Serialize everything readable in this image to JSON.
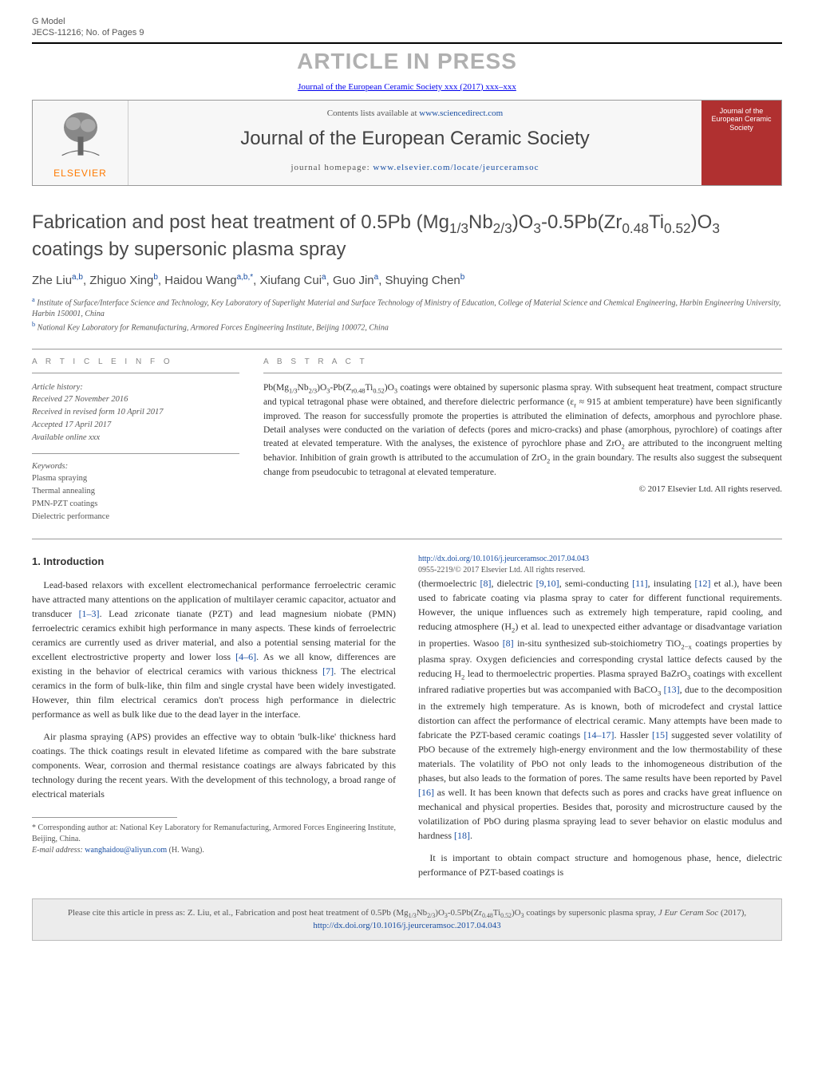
{
  "top_meta": {
    "model_label": "G Model",
    "model_code": "JECS-11216;   No. of Pages 9",
    "press_banner": "ARTICLE IN PRESS",
    "journal_ref": "Journal of the European Ceramic Society xxx (2017) xxx–xxx"
  },
  "header": {
    "elsevier": "ELSEVIER",
    "contents_prefix": "Contents lists available at ",
    "contents_link": "www.sciencedirect.com",
    "journal_name": "Journal of the European Ceramic Society",
    "homepage_prefix": "journal homepage: ",
    "homepage_link": "www.elsevier.com/locate/jeurceramsoc",
    "cover_title": "Journal of the European Ceramic Society"
  },
  "article": {
    "title_html": "Fabrication and post heat treatment of 0.5Pb (Mg<sub>1/3</sub>Nb<sub>2/3</sub>)O<sub>3</sub>-0.5Pb(Zr<sub>0.48</sub>Ti<sub>0.52</sub>)O<sub>3</sub> coatings by supersonic plasma spray",
    "authors_html": "Zhe Liu<sup>a,b</sup>, Zhiguo Xing<sup>b</sup>, Haidou Wang<sup>a,b,*</sup>, Xiufang Cui<sup>a</sup>, Guo Jin<sup>a</sup>, Shuying Chen<sup>b</sup>",
    "affiliations": [
      {
        "sup": "a",
        "text": "Institute of Surface/Interface Science and Technology, Key Laboratory of Superlight Material and Surface Technology of Ministry of Education, College of Material Science and Chemical Engineering, Harbin Engineering University, Harbin 150001, China"
      },
      {
        "sup": "b",
        "text": "National Key Laboratory for Remanufacturing, Armored Forces Engineering Institute, Beijing 100072, China"
      }
    ]
  },
  "info": {
    "section_label": "A R T I C L E   I N F O",
    "history_label": "Article history:",
    "history": [
      "Received 27 November 2016",
      "Received in revised form 10 April 2017",
      "Accepted 17 April 2017",
      "Available online xxx"
    ],
    "keywords_label": "Keywords:",
    "keywords": [
      "Plasma spraying",
      "Thermal annealing",
      "PMN-PZT coatings",
      "Dielectric performance"
    ]
  },
  "abstract": {
    "section_label": "A B S T R A C T",
    "text_html": "Pb(Mg<sub>1/3</sub>Nb<sub>2/3</sub>)O<sub>3</sub>-Pb(Z<sub>r0.48</sub>Ti<sub>0.52</sub>)O<sub>3</sub> coatings were obtained by supersonic plasma spray. With subsequent heat treatment, compact structure and typical tetragonal phase were obtained, and therefore dielectric performance (ε<sub>r</sub> ≈ 915 at ambient temperature) have been significantly improved. The reason for successfully promote the properties is attributed the elimination of defects, amorphous and pyrochlore phase. Detail analyses were conducted on the variation of defects (pores and micro-cracks) and phase (amorphous, pyrochlore) of coatings after treated at elevated temperature. With the analyses, the existence of pyrochlore phase and ZrO<sub>2</sub> are attributed to the incongruent melting behavior. Inhibition of grain growth is attributed to the accumulation of ZrO<sub>2</sub> in the grain boundary. The results also suggest the subsequent change from pseudocubic to tetragonal at elevated temperature.",
    "copyright": "© 2017 Elsevier Ltd. All rights reserved."
  },
  "body": {
    "heading": "1. Introduction",
    "p1_html": "Lead-based relaxors with excellent electromechanical performance ferroelectric ceramic have attracted many attentions on the application of multilayer ceramic capacitor, actuator and transducer <a href='#'>[1–3]</a>. Lead zriconate tianate (PZT) and lead magnesium niobate (PMN) ferroelectric ceramics exhibit high performance in many aspects. These kinds of ferroelectric ceramics are currently used as driver material, and also a potential sensing material for the excellent electrostrictive property and lower loss <a href='#'>[4–6]</a>. As we all know, differences are existing in the behavior of electrical ceramics with various thickness <a href='#'>[7]</a>. The electrical ceramics in the form of bulk-like, thin film and single crystal have been widely investigated. However, thin film electrical ceramics don't process high performance in dielectric performance as well as bulk like due to the dead layer in the interface.",
    "p2_html": "Air plasma spraying (APS) provides an effective way to obtain 'bulk-like' thickness hard coatings. The thick coatings result in elevated lifetime as compared with the bare substrate components. Wear, corrosion and thermal resistance coatings are always fabricated by this technology during the recent years. With the development of this technology, a broad range of electrical materials",
    "p3_html": "(thermoelectric <a href='#'>[8]</a>, dielectric <a href='#'>[9,10]</a>, semi-conducting <a href='#'>[11]</a>, insulating <a href='#'>[12]</a> et al.), have been used to fabricate coating via plasma spray to cater for different functional requirements. However, the unique influences such as extremely high temperature, rapid cooling, and reducing atmosphere (H<sub>2</sub>) et al. lead to unexpected either advantage or disadvantage variation in properties. Wasoo <a href='#'>[8]</a> in-situ synthesized sub-stoichiometry TiO<sub>2−x</sub> coatings properties by plasma spray. Oxygen deficiencies and corresponding crystal lattice defects caused by the reducing H<sub>2</sub> lead to thermoelectric properties. Plasma sprayed BaZrO<sub>3</sub> coatings with excellent infrared radiative properties but was accompanied with BaCO<sub>3</sub> <a href='#'>[13]</a>, due to the decomposition in the extremely high temperature. As is known, both of microdefect and crystal lattice distortion can affect the performance of electrical ceramic. Many attempts have been made to fabricate the PZT-based ceramic coatings <a href='#'>[14–17]</a>. Hassler <a href='#'>[15]</a> suggested sever volatility of PbO because of the extremely high-energy environment and the low thermostability of these materials. The volatility of PbO not only leads to the inhomogeneous distribution of the phases, but also leads to the formation of pores. The same results have been reported by Pavel <a href='#'>[16]</a> as well. It has been known that defects such as pores and cracks have great influence on mechanical and physical properties. Besides that, porosity and microstructure caused by the volatilization of PbO during plasma spraying lead to sever behavior on elastic modulus and hardness <a href='#'>[18]</a>.",
    "p4_html": "It is important to obtain compact structure and homogenous phase, hence, dielectric performance of PZT-based coatings is"
  },
  "footnotes": {
    "corresponding": "* Corresponding author at: National Key Laboratory for Remanufacturing, Armored Forces Engineering Institute, Beijing, China.",
    "email_label": "E-mail address: ",
    "email": "wanghaidou@aliyun.com",
    "email_person": " (H. Wang)."
  },
  "doi": {
    "url": "http://dx.doi.org/10.1016/j.jeurceramsoc.2017.04.043",
    "issn_copyright": "0955-2219/© 2017 Elsevier Ltd. All rights reserved."
  },
  "cite_box": {
    "text_html": "Please cite this article in press as: Z. Liu, et al., Fabrication and post heat treatment of 0.5Pb (Mg<sub>1/3</sub>Nb<sub>2/3</sub>)O<sub>3</sub>-0.5Pb(Zr<sub>0.48</sub>Ti<sub>0.52</sub>)O<sub>3</sub> coatings by supersonic plasma spray, <i>J Eur Ceram Soc</i> (2017), <a href='#'>http://dx.doi.org/10.1016/j.jeurceramsoc.2017.04.043</a>"
  },
  "colors": {
    "link": "#1a4fa3",
    "elsevier_orange": "#ff7a00",
    "cover_red": "#b03030",
    "press_gray": "#b0b0b0",
    "rule": "#999999"
  }
}
